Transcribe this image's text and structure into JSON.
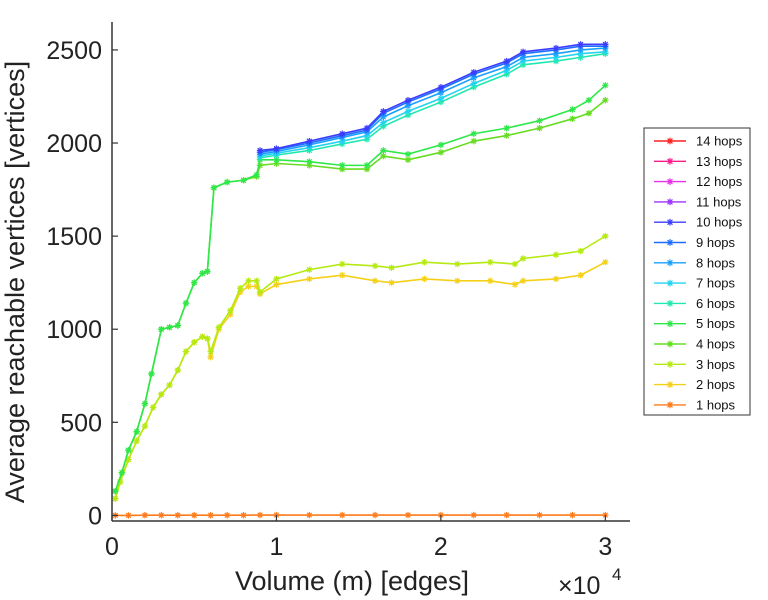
{
  "chart_data": {
    "type": "line",
    "xlabel": "Volume (m) [edges]",
    "ylabel": "Average reachable vertices [vertices]",
    "x_multiplier_base": "×10",
    "x_multiplier_exp": "4",
    "xlim": [
      0,
      3.15
    ],
    "ylim": [
      -30,
      2650
    ],
    "x_ticks": [
      0,
      1,
      2,
      3
    ],
    "x_tick_labels": [
      "0",
      "1",
      "2",
      "3"
    ],
    "y_ticks": [
      0,
      500,
      1000,
      1500,
      2000,
      2500
    ],
    "y_tick_labels": [
      "0",
      "500",
      "1000",
      "1500",
      "2000",
      "2500"
    ],
    "grid": false,
    "legend_position": "right-outside",
    "series": [
      {
        "name": "14 hops",
        "color": "#ff2020",
        "x": [],
        "y": []
      },
      {
        "name": "13 hops",
        "color": "#ff1a8c",
        "x": [],
        "y": []
      },
      {
        "name": "12 hops",
        "color": "#e830e8",
        "x": [],
        "y": []
      },
      {
        "name": "11 hops",
        "color": "#9a33ff",
        "x": [],
        "y": []
      },
      {
        "name": "10 hops",
        "color": "#3c3cff",
        "x": [
          0.9,
          1.0,
          1.2,
          1.4,
          1.55,
          1.65,
          1.8,
          2.0,
          2.2,
          2.4,
          2.5,
          2.7,
          2.85,
          3.0
        ],
        "y": [
          1960,
          1970,
          2010,
          2050,
          2080,
          2170,
          2230,
          2300,
          2380,
          2440,
          2490,
          2510,
          2530,
          2530
        ]
      },
      {
        "name": "9 hops",
        "color": "#1e6eff",
        "x": [
          0.9,
          1.0,
          1.2,
          1.4,
          1.55,
          1.65,
          1.8,
          2.0,
          2.2,
          2.4,
          2.5,
          2.7,
          2.85,
          3.0
        ],
        "y": [
          1950,
          1965,
          2000,
          2040,
          2070,
          2160,
          2220,
          2290,
          2370,
          2430,
          2480,
          2500,
          2520,
          2520
        ]
      },
      {
        "name": "8 hops",
        "color": "#1aa0ff",
        "x": [
          0.9,
          1.0,
          1.2,
          1.4,
          1.55,
          1.65,
          1.8,
          2.0,
          2.2,
          2.4,
          2.5,
          2.7,
          2.85,
          3.0
        ],
        "y": [
          1940,
          1955,
          1990,
          2030,
          2060,
          2140,
          2200,
          2270,
          2350,
          2410,
          2460,
          2480,
          2500,
          2510
        ]
      },
      {
        "name": "7 hops",
        "color": "#22d4f0",
        "x": [
          0.9,
          1.0,
          1.2,
          1.4,
          1.55,
          1.65,
          1.8,
          2.0,
          2.2,
          2.4,
          2.5,
          2.7,
          2.85,
          3.0
        ],
        "y": [
          1930,
          1945,
          1975,
          2010,
          2040,
          2110,
          2170,
          2240,
          2320,
          2390,
          2440,
          2460,
          2480,
          2490
        ]
      },
      {
        "name": "6 hops",
        "color": "#20e8b0",
        "x": [
          0.9,
          1.0,
          1.2,
          1.4,
          1.55,
          1.65,
          1.8,
          2.0,
          2.2,
          2.4,
          2.5,
          2.7,
          2.85,
          3.0
        ],
        "y": [
          1920,
          1935,
          1960,
          1995,
          2020,
          2090,
          2150,
          2220,
          2300,
          2370,
          2420,
          2440,
          2460,
          2480
        ]
      },
      {
        "name": "5 hops",
        "color": "#2ee84a",
        "x": [
          0.02,
          0.06,
          0.1,
          0.15,
          0.2,
          0.24,
          0.3,
          0.35,
          0.4,
          0.45,
          0.5,
          0.55,
          0.58,
          0.62,
          0.7,
          0.8,
          0.88,
          0.9,
          1.0,
          1.2,
          1.4,
          1.55,
          1.65,
          1.8,
          2.0,
          2.2,
          2.4,
          2.6,
          2.8,
          2.9,
          3.0
        ],
        "y": [
          130,
          230,
          350,
          450,
          600,
          760,
          1000,
          1010,
          1020,
          1140,
          1250,
          1300,
          1310,
          1760,
          1790,
          1800,
          1830,
          1910,
          1910,
          1900,
          1880,
          1880,
          1960,
          1940,
          1990,
          2050,
          2080,
          2120,
          2180,
          2230,
          2310
        ]
      },
      {
        "name": "4 hops",
        "color": "#66dd22",
        "x": [
          0.02,
          0.06,
          0.1,
          0.15,
          0.2,
          0.24,
          0.3,
          0.35,
          0.4,
          0.45,
          0.5,
          0.55,
          0.58,
          0.62,
          0.7,
          0.8,
          0.88,
          0.9,
          1.0,
          1.2,
          1.4,
          1.55,
          1.65,
          1.8,
          2.0,
          2.2,
          2.4,
          2.6,
          2.8,
          2.9,
          3.0
        ],
        "y": [
          130,
          230,
          350,
          450,
          600,
          760,
          1000,
          1010,
          1020,
          1140,
          1250,
          1300,
          1310,
          1760,
          1790,
          1800,
          1820,
          1880,
          1890,
          1880,
          1860,
          1860,
          1930,
          1910,
          1950,
          2010,
          2040,
          2080,
          2130,
          2160,
          2230
        ]
      },
      {
        "name": "3 hops",
        "color": "#b4ea10",
        "x": [
          0.02,
          0.05,
          0.1,
          0.15,
          0.2,
          0.25,
          0.3,
          0.35,
          0.4,
          0.45,
          0.5,
          0.55,
          0.58,
          0.6,
          0.65,
          0.72,
          0.78,
          0.83,
          0.88,
          0.9,
          1.0,
          1.2,
          1.4,
          1.6,
          1.7,
          1.9,
          2.1,
          2.3,
          2.45,
          2.5,
          2.7,
          2.85,
          3.0
        ],
        "y": [
          90,
          180,
          300,
          400,
          480,
          580,
          650,
          700,
          780,
          880,
          930,
          960,
          950,
          880,
          1010,
          1100,
          1220,
          1260,
          1260,
          1200,
          1270,
          1320,
          1350,
          1340,
          1330,
          1360,
          1350,
          1360,
          1350,
          1380,
          1400,
          1420,
          1500
        ]
      },
      {
        "name": "2 hops",
        "color": "#f5d018",
        "x": [
          0.02,
          0.05,
          0.1,
          0.15,
          0.2,
          0.25,
          0.3,
          0.35,
          0.4,
          0.45,
          0.5,
          0.55,
          0.58,
          0.6,
          0.65,
          0.72,
          0.78,
          0.83,
          0.88,
          0.9,
          1.0,
          1.2,
          1.4,
          1.6,
          1.7,
          1.9,
          2.1,
          2.3,
          2.45,
          2.5,
          2.7,
          2.85,
          3.0
        ],
        "y": [
          90,
          180,
          300,
          400,
          480,
          580,
          650,
          700,
          780,
          880,
          930,
          960,
          950,
          850,
          1000,
          1080,
          1200,
          1230,
          1230,
          1190,
          1240,
          1270,
          1290,
          1260,
          1250,
          1270,
          1260,
          1260,
          1240,
          1260,
          1270,
          1290,
          1360
        ]
      },
      {
        "name": "1 hops",
        "color": "#ff7a1a",
        "x": [
          0.02,
          0.1,
          0.2,
          0.3,
          0.4,
          0.5,
          0.6,
          0.7,
          0.8,
          0.9,
          1.0,
          1.2,
          1.4,
          1.6,
          1.8,
          2.0,
          2.2,
          2.4,
          2.6,
          2.8,
          3.0
        ],
        "y": [
          0,
          0,
          1,
          1,
          1,
          1,
          1,
          1,
          1,
          2,
          2,
          2,
          2,
          2,
          2,
          2,
          2,
          2,
          2,
          2,
          2
        ]
      }
    ]
  }
}
